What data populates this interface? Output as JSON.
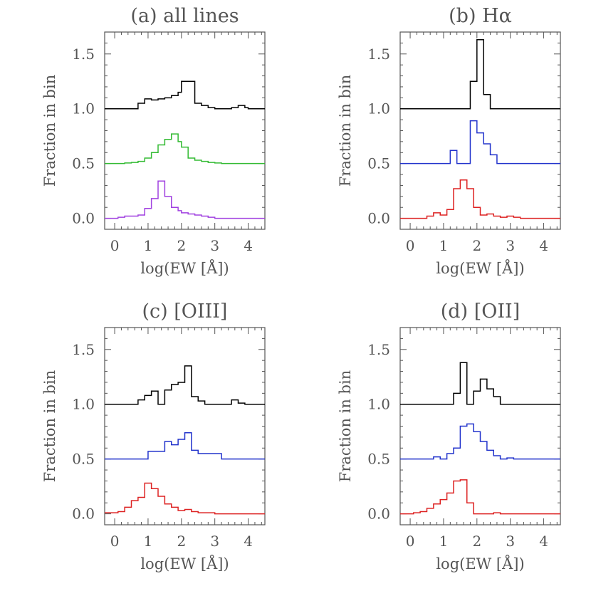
{
  "chart_data": [
    {
      "type": "step-histogram",
      "title": "(a) all lines",
      "xlabel": "log(EW [Å])",
      "ylabel": "Fraction in bin",
      "xlim": [
        -0.3,
        4.5
      ],
      "ylim": [
        -0.1,
        1.7
      ],
      "xticks": [
        "0",
        "1",
        "2",
        "3",
        "4"
      ],
      "yticks": [
        "0.0",
        "0.5",
        "1.0",
        "1.5"
      ],
      "series": [
        {
          "color": "#000000",
          "offset": 1.0,
          "x": [
            -0.3,
            0.7,
            0.9,
            1.1,
            1.3,
            1.5,
            1.7,
            1.9,
            2.0,
            2.4,
            2.6,
            2.8,
            3.0,
            3.5,
            3.7,
            3.9,
            4.0,
            4.5
          ],
          "y": [
            1.0,
            1.05,
            1.09,
            1.08,
            1.09,
            1.1,
            1.12,
            1.15,
            1.25,
            1.05,
            1.03,
            1.01,
            1.0,
            1.01,
            1.03,
            1.01,
            1.0
          ]
        },
        {
          "color": "#33bb33",
          "offset": 0.5,
          "x": [
            -0.3,
            0.3,
            0.5,
            0.7,
            0.9,
            1.1,
            1.3,
            1.5,
            1.7,
            1.9,
            2.0,
            2.2,
            2.4,
            2.6,
            2.8,
            3.0,
            3.2,
            4.5
          ],
          "y": [
            0.5,
            0.505,
            0.51,
            0.52,
            0.55,
            0.6,
            0.67,
            0.72,
            0.77,
            0.7,
            0.65,
            0.55,
            0.53,
            0.52,
            0.51,
            0.505,
            0.5
          ]
        },
        {
          "color": "#a040e0",
          "offset": 0.0,
          "x": [
            -0.3,
            0.1,
            0.3,
            0.5,
            0.7,
            0.9,
            1.1,
            1.3,
            1.5,
            1.7,
            1.9,
            2.0,
            2.2,
            2.4,
            2.6,
            2.8,
            3.0,
            4.5
          ],
          "y": [
            0.0,
            0.01,
            0.02,
            0.02,
            0.03,
            0.09,
            0.18,
            0.34,
            0.2,
            0.1,
            0.07,
            0.05,
            0.04,
            0.03,
            0.02,
            0.01,
            0.0
          ]
        }
      ]
    },
    {
      "type": "step-histogram",
      "title": "(b) Hα",
      "xlabel": "log(EW [Å])",
      "ylabel": "Fraction in bin",
      "xlim": [
        -0.3,
        4.5
      ],
      "ylim": [
        -0.1,
        1.7
      ],
      "xticks": [
        "0",
        "1",
        "2",
        "3",
        "4"
      ],
      "yticks": [
        "0.0",
        "0.5",
        "1.0",
        "1.5"
      ],
      "series": [
        {
          "color": "#000000",
          "offset": 1.0,
          "x": [
            -0.3,
            1.8,
            2.0,
            2.2,
            2.4,
            2.6,
            4.5
          ],
          "y": [
            1.0,
            1.25,
            1.63,
            1.13,
            1.0,
            1.0
          ]
        },
        {
          "color": "#2233cc",
          "offset": 0.5,
          "x": [
            -0.3,
            1.2,
            1.4,
            1.8,
            2.0,
            2.2,
            2.4,
            2.6,
            2.8,
            4.5
          ],
          "y": [
            0.5,
            0.62,
            0.5,
            0.89,
            0.78,
            0.68,
            0.58,
            0.5,
            0.5
          ]
        },
        {
          "color": "#dd2222",
          "offset": 0.0,
          "x": [
            -0.3,
            0.5,
            0.7,
            0.9,
            1.1,
            1.3,
            1.5,
            1.7,
            1.9,
            2.1,
            2.3,
            2.5,
            2.7,
            2.9,
            3.1,
            3.3,
            4.5
          ],
          "y": [
            0.0,
            0.02,
            0.05,
            0.03,
            0.08,
            0.27,
            0.35,
            0.27,
            0.1,
            0.03,
            0.04,
            0.02,
            0.01,
            0.02,
            0.01,
            0.0
          ]
        }
      ]
    },
    {
      "type": "step-histogram",
      "title": "(c) [OIII]",
      "xlabel": "log(EW [Å])",
      "ylabel": "Fraction in bin",
      "xlim": [
        -0.3,
        4.5
      ],
      "ylim": [
        -0.1,
        1.7
      ],
      "xticks": [
        "0",
        "1",
        "2",
        "3",
        "4"
      ],
      "yticks": [
        "0.0",
        "0.5",
        "1.0",
        "1.5"
      ],
      "series": [
        {
          "color": "#000000",
          "offset": 1.0,
          "x": [
            -0.3,
            0.7,
            0.9,
            1.1,
            1.3,
            1.5,
            1.7,
            1.9,
            2.1,
            2.3,
            2.5,
            2.7,
            2.9,
            3.5,
            3.7,
            3.9,
            4.0,
            4.5
          ],
          "y": [
            1.0,
            1.04,
            1.08,
            1.12,
            1.0,
            1.13,
            1.18,
            1.2,
            1.35,
            1.07,
            1.03,
            1.0,
            1.0,
            1.04,
            1.01,
            1.0,
            1.0
          ]
        },
        {
          "color": "#2233cc",
          "offset": 0.5,
          "x": [
            -0.3,
            1.0,
            1.5,
            1.7,
            1.9,
            2.1,
            2.3,
            2.5,
            3.2,
            4.5
          ],
          "y": [
            0.5,
            0.57,
            0.66,
            0.63,
            0.68,
            0.74,
            0.58,
            0.55,
            0.5
          ]
        },
        {
          "color": "#dd2222",
          "offset": 0.0,
          "x": [
            -0.3,
            0.1,
            0.3,
            0.5,
            0.7,
            0.9,
            1.1,
            1.3,
            1.5,
            1.7,
            1.9,
            2.1,
            2.3,
            2.5,
            2.7,
            3.0,
            3.3,
            4.5
          ],
          "y": [
            0.01,
            0.02,
            0.06,
            0.12,
            0.15,
            0.28,
            0.23,
            0.16,
            0.09,
            0.06,
            0.03,
            0.04,
            0.02,
            0.01,
            0.01,
            0.0,
            0.0
          ]
        }
      ]
    },
    {
      "type": "step-histogram",
      "title": "(d) [OII]",
      "xlabel": "log(EW [Å])",
      "ylabel": "Fraction in bin",
      "xlim": [
        -0.3,
        4.5
      ],
      "ylim": [
        -0.1,
        1.7
      ],
      "xticks": [
        "0",
        "1",
        "2",
        "3",
        "4"
      ],
      "yticks": [
        "0.0",
        "0.5",
        "1.0",
        "1.5"
      ],
      "series": [
        {
          "color": "#000000",
          "offset": 1.0,
          "x": [
            -0.3,
            1.3,
            1.5,
            1.7,
            1.9,
            2.1,
            2.3,
            2.5,
            2.7,
            3.0,
            4.5
          ],
          "y": [
            1.0,
            1.1,
            1.38,
            1.0,
            1.12,
            1.23,
            1.14,
            1.07,
            1.0,
            1.0
          ]
        },
        {
          "color": "#2233cc",
          "offset": 0.5,
          "x": [
            -0.3,
            0.7,
            0.9,
            1.1,
            1.3,
            1.5,
            1.7,
            1.9,
            2.1,
            2.3,
            2.5,
            2.7,
            2.9,
            3.1,
            4.5
          ],
          "y": [
            0.5,
            0.52,
            0.5,
            0.55,
            0.6,
            0.8,
            0.82,
            0.75,
            0.66,
            0.58,
            0.53,
            0.5,
            0.51,
            0.5
          ]
        },
        {
          "color": "#dd2222",
          "offset": 0.0,
          "x": [
            -0.3,
            0.1,
            0.3,
            0.5,
            0.7,
            0.9,
            1.1,
            1.3,
            1.5,
            1.7,
            1.9,
            2.1,
            2.5,
            2.7,
            3.0,
            4.5
          ],
          "y": [
            0.0,
            0.01,
            0.02,
            0.05,
            0.09,
            0.13,
            0.19,
            0.3,
            0.31,
            0.1,
            0.0,
            0.0,
            0.01,
            0.0,
            0.0
          ]
        }
      ]
    }
  ]
}
